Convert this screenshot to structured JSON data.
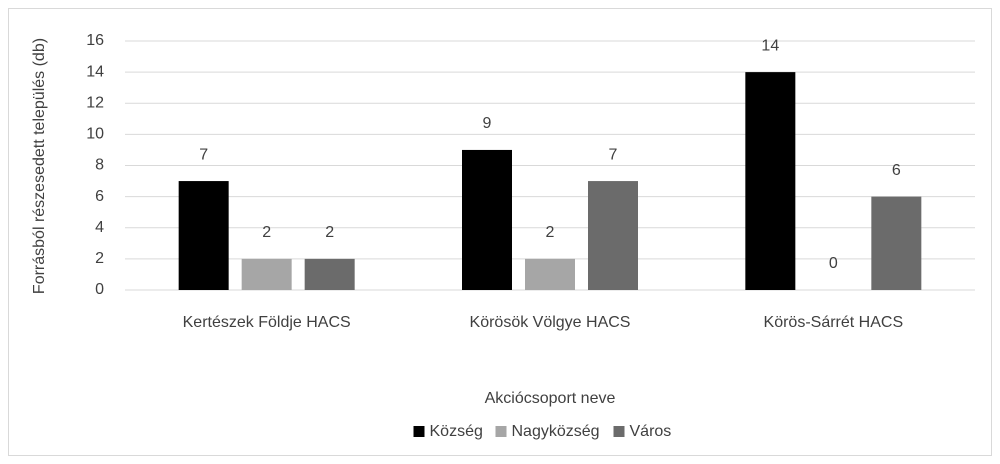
{
  "chart_data": {
    "type": "bar",
    "categories": [
      "Kertészek Földje HACS",
      "Körösök Völgye HACS",
      "Körös-Sárrét HACS"
    ],
    "series": [
      {
        "name": "Község",
        "color": "#000000",
        "values": [
          7,
          9,
          14
        ]
      },
      {
        "name": "Nagyközség",
        "color": "#a6a6a6",
        "values": [
          2,
          2,
          0
        ]
      },
      {
        "name": "Város",
        "color": "#6b6b6b",
        "values": [
          2,
          7,
          6
        ]
      }
    ],
    "ylim": [
      0,
      16
    ],
    "yticks": [
      0,
      2,
      4,
      6,
      8,
      10,
      12,
      14,
      16
    ],
    "y_label": "Forrásból részesedett település (db)",
    "x_label": "Akciócsoport neve",
    "grid": true,
    "legend": "bottom"
  }
}
